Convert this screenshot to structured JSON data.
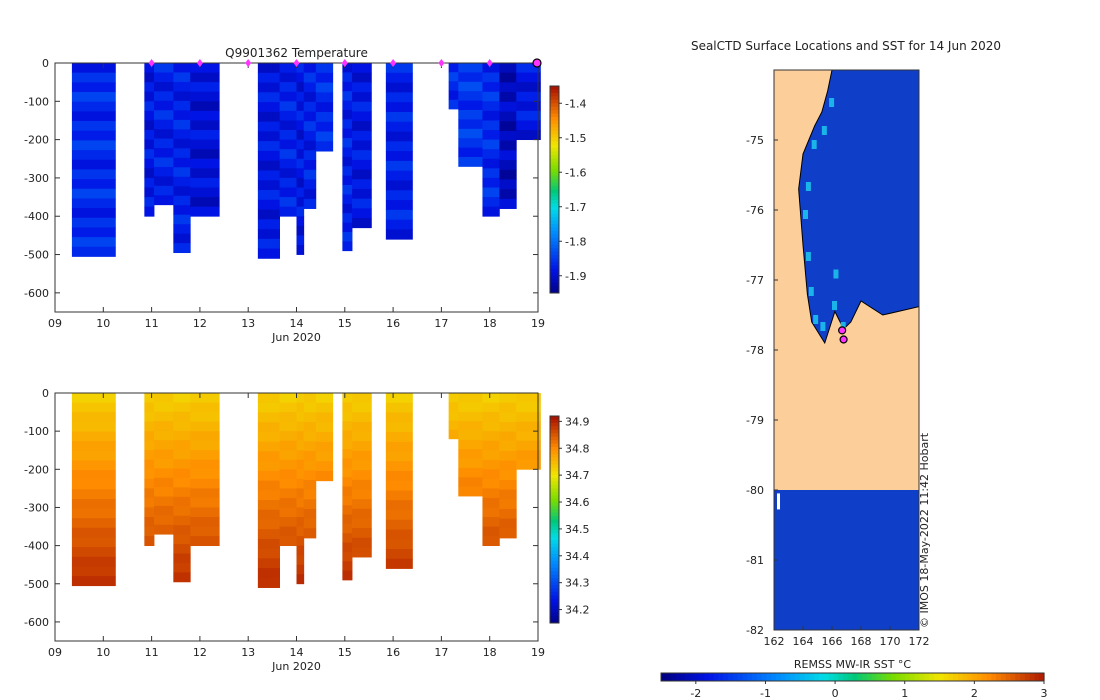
{
  "chart_data": [
    {
      "type": "heatmap",
      "name": "temperature-section",
      "title": "Q9901362  Temperature",
      "xlabel": "Jun 2020",
      "ylabel": "",
      "xlim": [
        9,
        19
      ],
      "ylim": [
        -650,
        0
      ],
      "x_ticks": [
        "09",
        "10",
        "11",
        "12",
        "13",
        "14",
        "15",
        "16",
        "17",
        "18",
        "19"
      ],
      "y_ticks": [
        "0",
        "-100",
        "-200",
        "-300",
        "-400",
        "-500",
        "-600"
      ],
      "colorbar": {
        "min": -1.95,
        "max": -1.35,
        "ticks": [
          "-1.4",
          "-1.5",
          "-1.6",
          "-1.7",
          "-1.8",
          "-1.9"
        ]
      },
      "surface_markers_day": [
        11,
        12,
        13,
        14,
        15,
        16,
        17,
        18
      ],
      "last_profile_marker_day": 19,
      "profiles": [
        {
          "start": 9.35,
          "end": 10.25,
          "depth": 505,
          "value": -1.86
        },
        {
          "start": 10.85,
          "end": 11.05,
          "depth": 400,
          "value": -1.88
        },
        {
          "start": 11.05,
          "end": 11.45,
          "depth": 370,
          "value": -1.87
        },
        {
          "start": 11.45,
          "end": 11.8,
          "depth": 495,
          "value": -1.87
        },
        {
          "start": 11.8,
          "end": 12.4,
          "depth": 400,
          "value": -1.89
        },
        {
          "start": 13.2,
          "end": 13.65,
          "depth": 510,
          "value": -1.88
        },
        {
          "start": 13.65,
          "end": 14.0,
          "depth": 400,
          "value": -1.87
        },
        {
          "start": 14.0,
          "end": 14.15,
          "depth": 500,
          "value": -1.88
        },
        {
          "start": 14.15,
          "end": 14.4,
          "depth": 380,
          "value": -1.87
        },
        {
          "start": 14.4,
          "end": 14.75,
          "depth": 230,
          "value": -1.86
        },
        {
          "start": 14.95,
          "end": 15.15,
          "depth": 490,
          "value": -1.87
        },
        {
          "start": 15.15,
          "end": 15.55,
          "depth": 430,
          "value": -1.88
        },
        {
          "start": 15.85,
          "end": 16.4,
          "depth": 460,
          "value": -1.87
        },
        {
          "start": 17.15,
          "end": 17.35,
          "depth": 120,
          "value": -1.86
        },
        {
          "start": 17.35,
          "end": 17.85,
          "depth": 270,
          "value": -1.85
        },
        {
          "start": 17.85,
          "end": 18.2,
          "depth": 400,
          "value": -1.86
        },
        {
          "start": 18.2,
          "end": 18.55,
          "depth": 380,
          "value": -1.91
        },
        {
          "start": 18.55,
          "end": 19.05,
          "depth": 200,
          "value": -1.88
        }
      ]
    },
    {
      "type": "heatmap",
      "name": "salinity-section",
      "title": "",
      "xlabel": "Jun 2020",
      "ylabel": "",
      "xlim": [
        9,
        19
      ],
      "ylim": [
        -650,
        0
      ],
      "x_ticks": [
        "09",
        "10",
        "11",
        "12",
        "13",
        "14",
        "15",
        "16",
        "17",
        "18",
        "19"
      ],
      "y_ticks": [
        "0",
        "-100",
        "-200",
        "-300",
        "-400",
        "-500",
        "-600"
      ],
      "colorbar": {
        "min": 34.15,
        "max": 34.92,
        "ticks": [
          "34.9",
          "34.8",
          "34.7",
          "34.6",
          "34.5",
          "34.4",
          "34.3",
          "34.2"
        ]
      },
      "surface_value": 34.73,
      "bottom_value": 34.9,
      "profiles_from_temperature_panel": true
    },
    {
      "type": "heatmap",
      "name": "sst-map",
      "title": "SealCTD Surface Locations and SST for 14 Jun 2020",
      "xlabel": "",
      "ylabel": "",
      "xlim": [
        162,
        172
      ],
      "ylim": [
        -82,
        -74
      ],
      "x_ticks": [
        "162",
        "164",
        "166",
        "168",
        "170",
        "172"
      ],
      "y_ticks": [
        "-75",
        "-76",
        "-77",
        "-78",
        "-79",
        "-80",
        "-81",
        "-82"
      ],
      "colorbar": {
        "label": "REMSS MW-IR SST °C",
        "min": -2.5,
        "max": 3,
        "ticks": [
          "-2",
          "-1",
          "0",
          "1",
          "2",
          "3"
        ]
      },
      "ocean_sst": -1.8,
      "ice_shelf_edge_lat": -80,
      "seal_locations": [
        {
          "lon": 166.7,
          "lat": -77.72
        },
        {
          "lon": 166.8,
          "lat": -77.85
        }
      ],
      "credit": "© IMOS 18-May-2022 11:42 Hobart"
    }
  ]
}
